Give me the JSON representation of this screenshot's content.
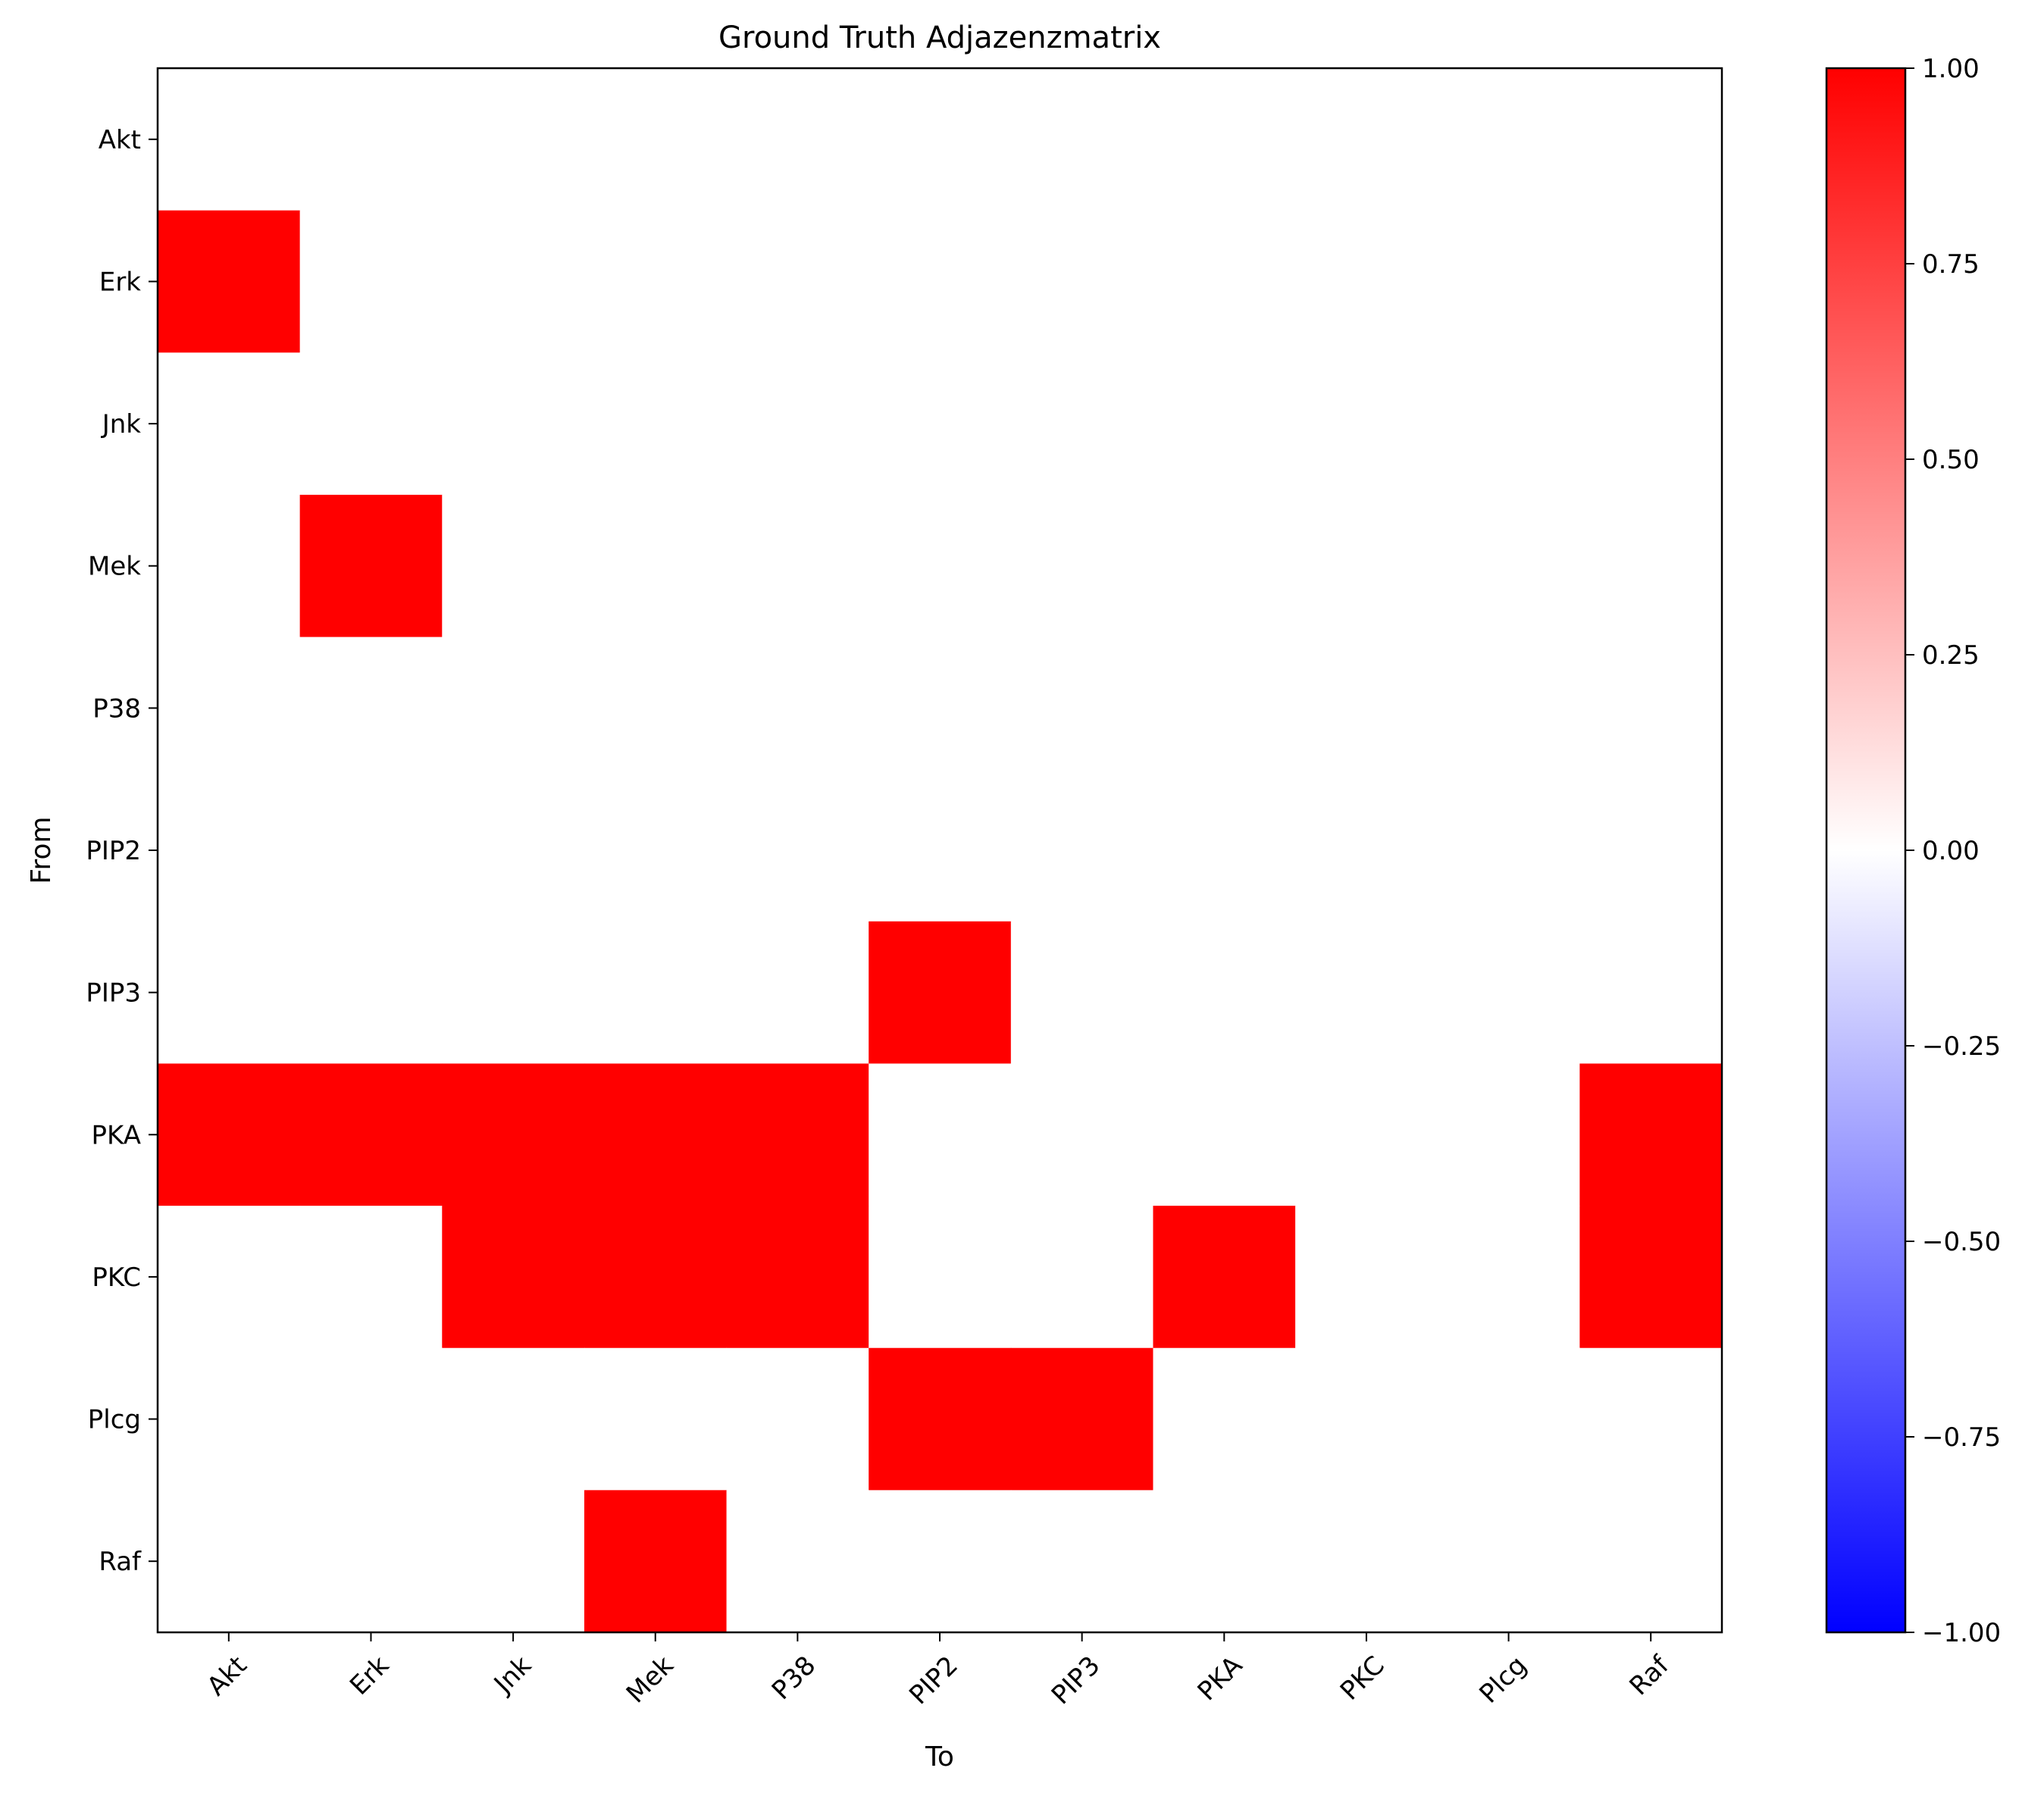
{
  "chart_data": {
    "type": "heatmap",
    "title": "Ground Truth Adjazenzmatrix",
    "xlabel": "To",
    "ylabel": "From",
    "x_categories": [
      "Akt",
      "Erk",
      "Jnk",
      "Mek",
      "P38",
      "PIP2",
      "PIP3",
      "PKA",
      "PKC",
      "Plcg",
      "Raf"
    ],
    "y_categories": [
      "Akt",
      "Erk",
      "Jnk",
      "Mek",
      "P38",
      "PIP2",
      "PIP3",
      "PKA",
      "PKC",
      "Plcg",
      "Raf"
    ],
    "values": [
      [
        0,
        0,
        0,
        0,
        0,
        0,
        0,
        0,
        0,
        0,
        0
      ],
      [
        1,
        0,
        0,
        0,
        0,
        0,
        0,
        0,
        0,
        0,
        0
      ],
      [
        0,
        0,
        0,
        0,
        0,
        0,
        0,
        0,
        0,
        0,
        0
      ],
      [
        0,
        1,
        0,
        0,
        0,
        0,
        0,
        0,
        0,
        0,
        0
      ],
      [
        0,
        0,
        0,
        0,
        0,
        0,
        0,
        0,
        0,
        0,
        0
      ],
      [
        0,
        0,
        0,
        0,
        0,
        0,
        0,
        0,
        0,
        0,
        0
      ],
      [
        0,
        0,
        0,
        0,
        0,
        1,
        0,
        0,
        0,
        0,
        0
      ],
      [
        1,
        1,
        1,
        1,
        1,
        0,
        0,
        0,
        0,
        0,
        1
      ],
      [
        0,
        0,
        1,
        1,
        1,
        0,
        0,
        1,
        0,
        0,
        1
      ],
      [
        0,
        0,
        0,
        0,
        0,
        1,
        1,
        0,
        0,
        0,
        0
      ],
      [
        0,
        0,
        0,
        1,
        0,
        0,
        0,
        0,
        0,
        0,
        0
      ]
    ],
    "colormap": "bwr",
    "colorbar": {
      "vmin": -1.0,
      "vmax": 1.0,
      "ticks": [
        1.0,
        0.75,
        0.5,
        0.25,
        0.0,
        -0.25,
        -0.5,
        -0.75,
        -1.0
      ],
      "tick_labels": [
        "1.00",
        "0.75",
        "0.50",
        "0.25",
        "0.00",
        "−0.25",
        "−0.50",
        "−0.75",
        "−1.00"
      ],
      "colors": {
        "low": "#0000ff",
        "mid": "#ffffff",
        "high": "#ff0000"
      }
    },
    "grid": false
  }
}
